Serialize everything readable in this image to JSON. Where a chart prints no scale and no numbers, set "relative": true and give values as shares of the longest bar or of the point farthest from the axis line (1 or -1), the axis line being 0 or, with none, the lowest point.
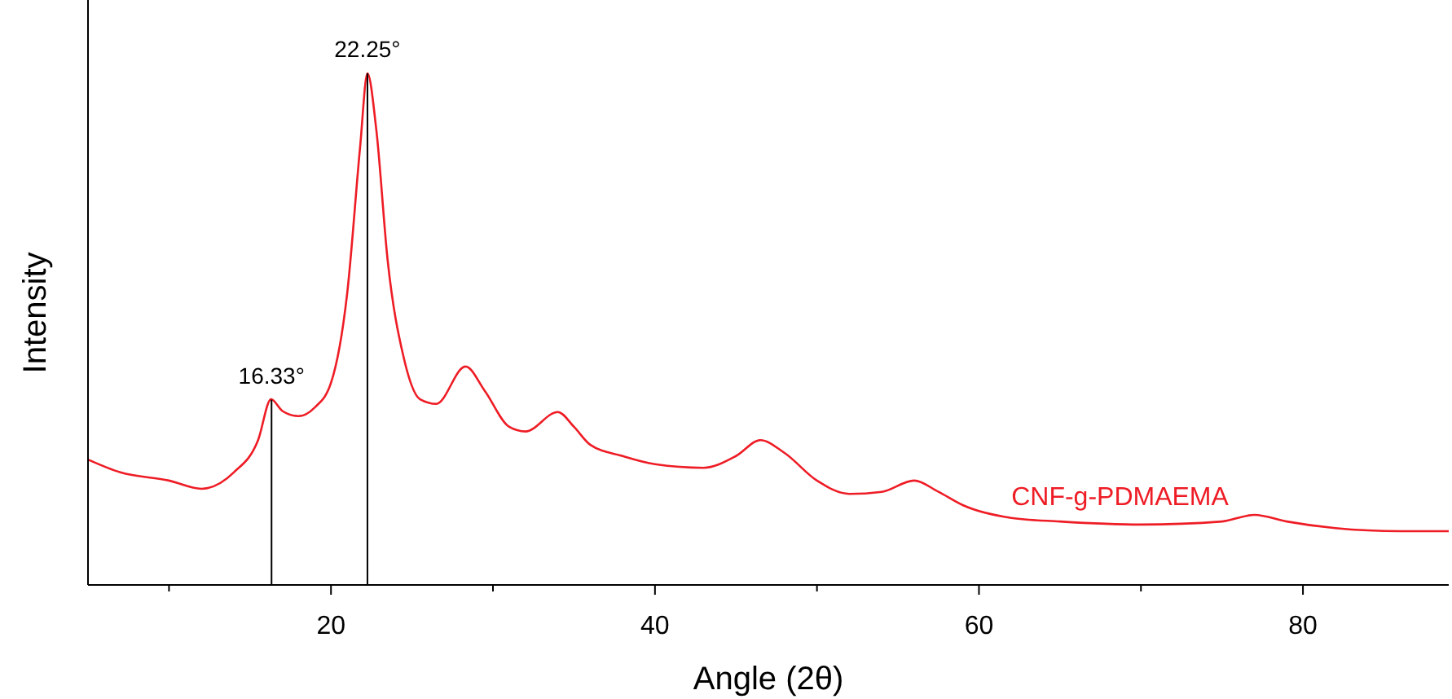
{
  "chart_data": {
    "type": "line",
    "relative": true,
    "xlabel": "Angle (2θ)",
    "ylabel": "Intensity",
    "xlim": [
      5,
      89
    ],
    "xticks": [
      {
        "value": 10,
        "label": null
      },
      20,
      {
        "value": 30,
        "label": null
      },
      40,
      {
        "value": 50,
        "label": null
      },
      60,
      {
        "value": 70,
        "label": null
      },
      80
    ],
    "series": [
      {
        "name": "CNF-g-PDMAEMA",
        "color": "#ee1c25",
        "x": [
          5,
          7,
          10,
          12,
          14,
          15.5,
          16.3,
          17,
          18,
          19,
          20,
          21,
          21.8,
          22.25,
          22.8,
          23.5,
          24.5,
          25.5,
          26.5,
          28.3,
          29.5,
          31,
          32,
          34,
          35,
          36,
          38,
          40,
          43,
          45,
          46.5,
          48,
          50,
          52,
          54,
          56,
          57.5,
          59,
          62,
          65,
          70,
          75,
          77,
          79,
          82,
          86,
          89
        ],
        "values": [
          0.245,
          0.22,
          0.204,
          0.188,
          0.22,
          0.283,
          0.363,
          0.34,
          0.33,
          0.347,
          0.395,
          0.57,
          0.857,
          1.0,
          0.889,
          0.634,
          0.443,
          0.363,
          0.354,
          0.427,
          0.379,
          0.309,
          0.3,
          0.338,
          0.309,
          0.274,
          0.252,
          0.236,
          0.229,
          0.252,
          0.283,
          0.258,
          0.204,
          0.178,
          0.182,
          0.204,
          0.182,
          0.156,
          0.131,
          0.124,
          0.118,
          0.124,
          0.137,
          0.124,
          0.111,
          0.105,
          0.105
        ]
      }
    ],
    "ref_lines": [
      {
        "axis": "x",
        "value": 16.33,
        "label": "16.33°",
        "color": "#000000"
      },
      {
        "axis": "x",
        "value": 22.25,
        "label": "22.25°",
        "color": "#000000"
      }
    ]
  }
}
